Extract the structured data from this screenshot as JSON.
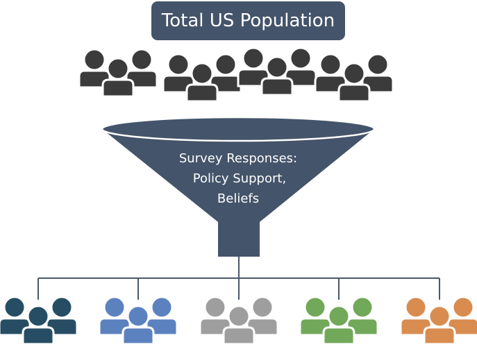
{
  "title": "Total US Population",
  "funnel": {
    "lines": [
      "Survey Responses:",
      "Policy Support,",
      "Beliefs"
    ]
  },
  "colors": {
    "title_bg": "#44546a",
    "funnel": "#44546a",
    "top_people": "#3b3b3b",
    "connector": "#4a5868"
  },
  "top_groups": [
    {
      "icon": "people-group-icon",
      "color": "#3b3b3b"
    },
    {
      "icon": "people-group-icon",
      "color": "#3b3b3b"
    },
    {
      "icon": "people-group-icon",
      "color": "#3b3b3b"
    },
    {
      "icon": "people-group-icon",
      "color": "#3b3b3b"
    }
  ],
  "segments": [
    {
      "icon": "people-group-icon",
      "color": "#264d63"
    },
    {
      "icon": "people-group-icon",
      "color": "#5b82bf"
    },
    {
      "icon": "people-group-icon",
      "color": "#9e9e9e"
    },
    {
      "icon": "people-group-icon",
      "color": "#72a85a"
    },
    {
      "icon": "people-group-icon",
      "color": "#d98c4f"
    }
  ]
}
